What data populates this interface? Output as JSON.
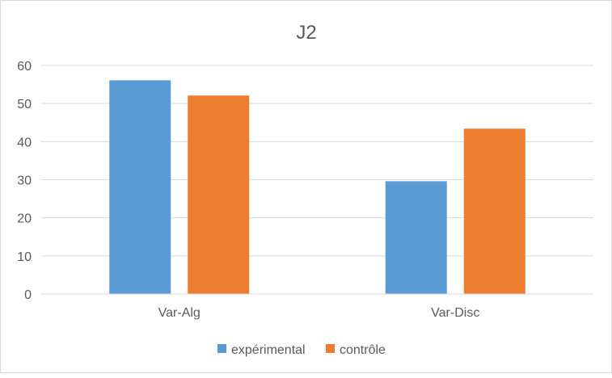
{
  "chart_data": {
    "type": "bar",
    "title": "J2",
    "categories": [
      "Var-Alg",
      "Var-Disc"
    ],
    "series": [
      {
        "name": "expérimental",
        "values": [
          56.1,
          29.6
        ],
        "color": "#5b9bd5"
      },
      {
        "name": "contrôle",
        "values": [
          52.1,
          43.4
        ],
        "color": "#ed7d31"
      }
    ],
    "xlabel": "",
    "ylabel": "",
    "ylim": [
      0,
      60
    ],
    "yticks": [
      0,
      10,
      20,
      30,
      40,
      50,
      60
    ],
    "grid": true,
    "legend": "bottom"
  }
}
